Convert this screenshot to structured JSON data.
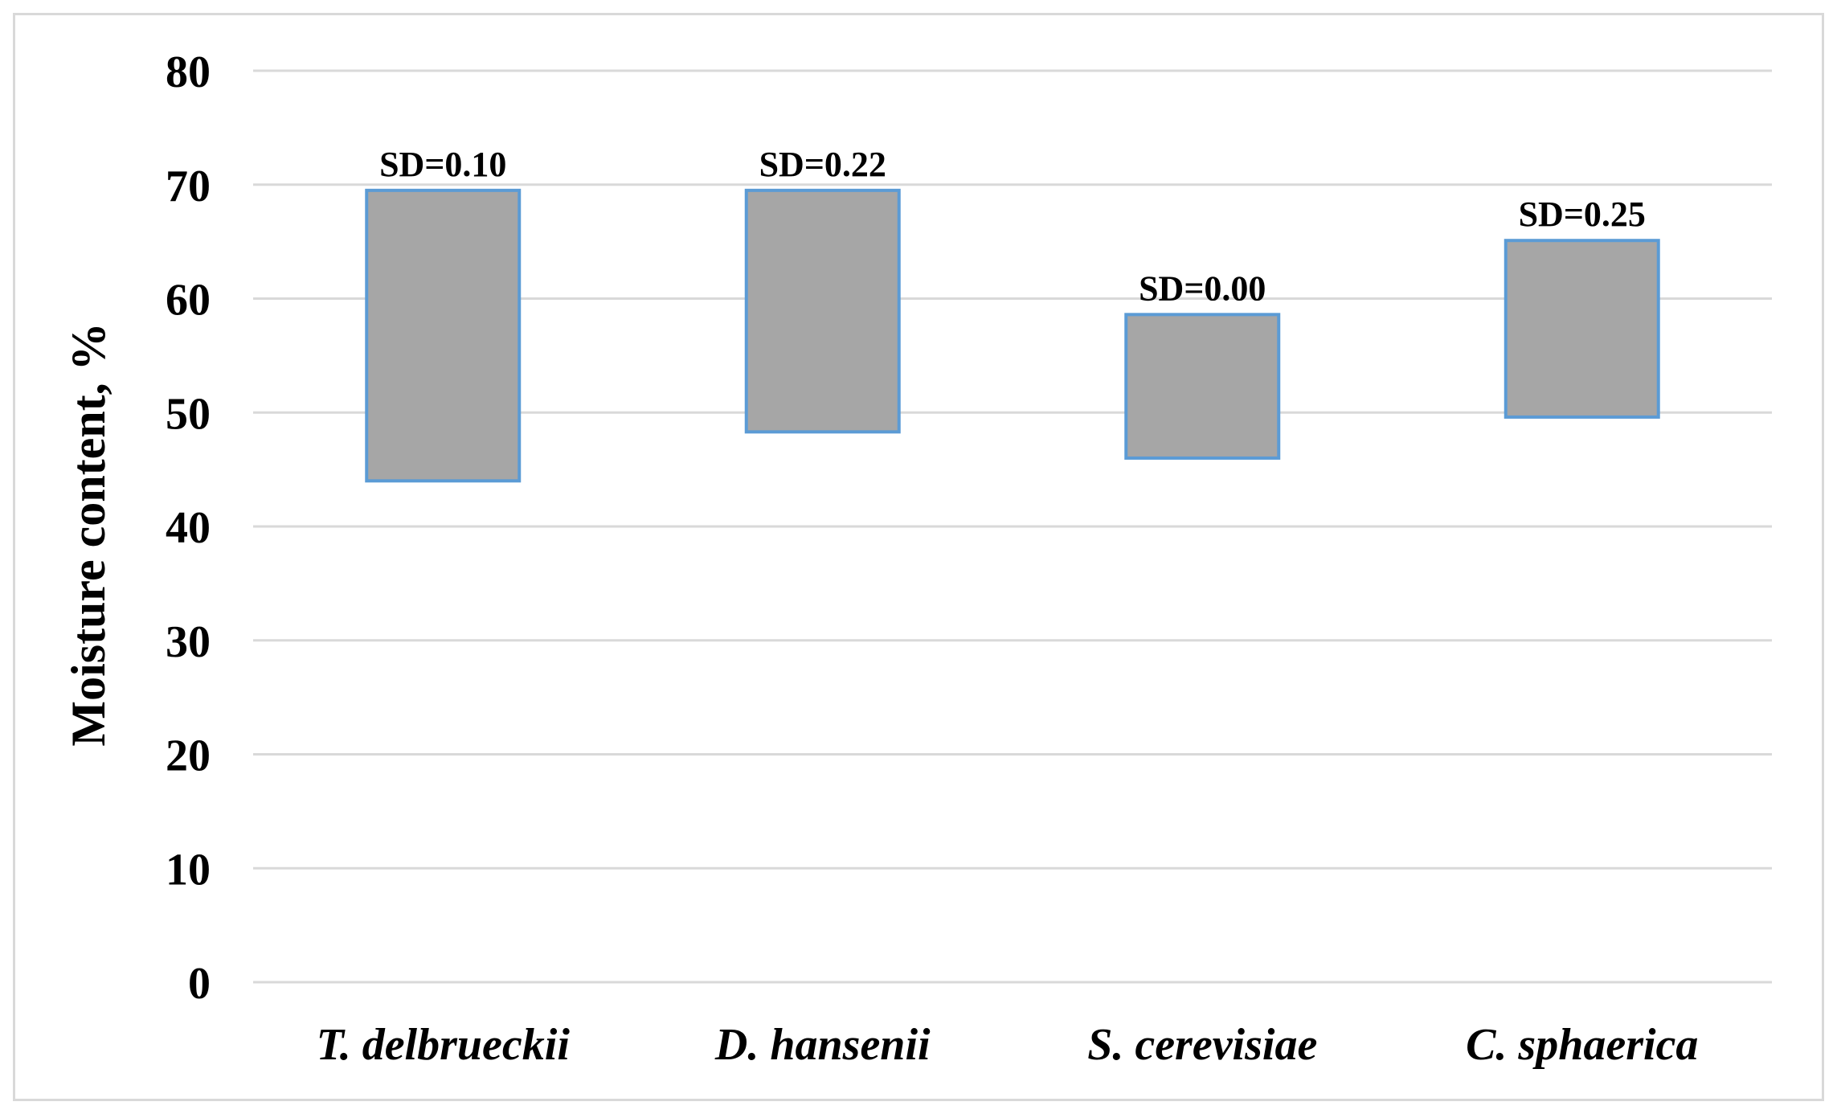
{
  "chart_data": {
    "type": "bar",
    "subtype": "floating-range",
    "title": "",
    "xlabel": "",
    "ylabel": "Moisture content, %",
    "ylim": [
      0,
      80
    ],
    "yticks": [
      0,
      10,
      20,
      30,
      40,
      50,
      60,
      70,
      80
    ],
    "grid": true,
    "legend": "none",
    "categories": [
      "T. delbrueckii",
      "D. hansenii",
      "S. cerevisiae",
      "C. sphaerica"
    ],
    "low": [
      44.0,
      48.3,
      46.0,
      49.6
    ],
    "high": [
      69.5,
      69.5,
      58.6,
      65.1
    ],
    "data_labels": [
      "SD=0.10",
      "SD=0.22",
      "SD=0.00",
      "SD=0.25"
    ],
    "colors": {
      "bar_fill": "#a6a6a6",
      "bar_stroke": "#5b9bd5",
      "grid": "#d9d9d9"
    }
  }
}
